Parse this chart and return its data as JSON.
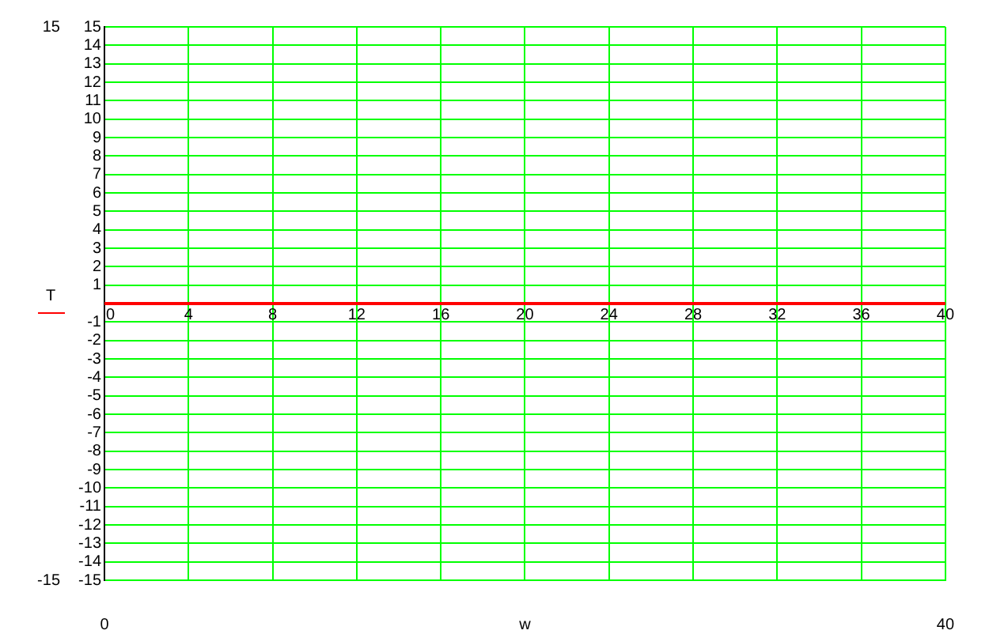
{
  "chart_data": {
    "type": "line",
    "xlabel": "w",
    "ylabel": "T",
    "x": [
      0,
      40
    ],
    "series": [
      {
        "color": "#ff0000",
        "values": [
          0,
          0
        ]
      }
    ],
    "x2lim": [
      0,
      40
    ],
    "x2ticks": [
      0,
      4,
      8,
      12,
      16,
      20,
      24,
      28,
      32,
      36,
      40
    ],
    "y2lim": [
      -15,
      15
    ],
    "y2ticks": [
      -15,
      -14,
      -13,
      -12,
      -11,
      -10,
      -9,
      -8,
      -7,
      -6,
      -5,
      -4,
      -3,
      -2,
      -1,
      {
        "value": 0,
        "label": null
      },
      1,
      2,
      3,
      4,
      5,
      6,
      7,
      8,
      9,
      10,
      11,
      12,
      13,
      14,
      15
    ],
    "xlim": [
      0,
      40
    ],
    "xticks": [
      0,
      40
    ],
    "ylim": [
      -15,
      15
    ],
    "yticks": [
      -15,
      15
    ],
    "grid": true,
    "marker": "none",
    "line_style": "solid"
  }
}
